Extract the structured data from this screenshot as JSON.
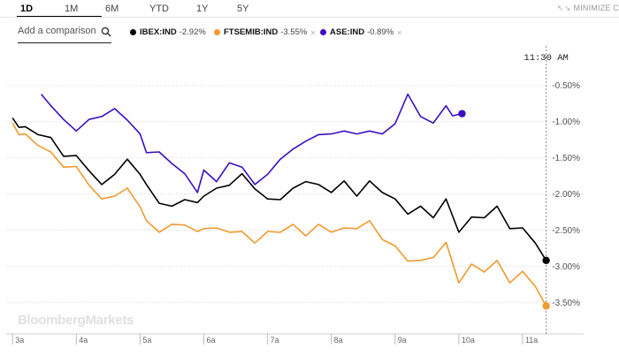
{
  "range_tabs": [
    {
      "label": "1D",
      "active": true
    },
    {
      "label": "1M",
      "active": false
    },
    {
      "label": "6M",
      "active": false
    },
    {
      "label": "YTD",
      "active": false
    },
    {
      "label": "1Y",
      "active": false
    },
    {
      "label": "5Y",
      "active": false
    }
  ],
  "minimize_label": "MINIMIZE C",
  "compare": {
    "placeholder": "Add a comparison"
  },
  "legend": [
    {
      "name": "IBEX:IND",
      "change": "-2.92%",
      "color": "#000000"
    },
    {
      "name": "FTSEMIB:IND",
      "change": "-3.55%",
      "color": "#f09a2f"
    },
    {
      "name": "ASE:IND",
      "change": "-0.89%",
      "color": "#3a0fc2"
    }
  ],
  "watermark": "BloombergMarkets",
  "chart_data": {
    "type": "line",
    "current_time_label": "11:30 AM",
    "x_ticks": [
      "3a",
      "4a",
      "5a",
      "6a",
      "7a",
      "8a",
      "9a",
      "10a",
      "11a"
    ],
    "y_ticks": [
      "-0.50%",
      "-1.00%",
      "-1.50%",
      "-2.00%",
      "-2.50%",
      "-3.00%",
      "-3.50%"
    ],
    "y_tick_values": [
      -0.5,
      -1.0,
      -1.5,
      -2.0,
      -2.5,
      -3.0,
      -3.5
    ],
    "ylim": [
      -3.9,
      -0.1
    ],
    "xlim": [
      2.9,
      11.5
    ],
    "grid": "horizontal-dotted",
    "series": [
      {
        "name": "IBEX:IND",
        "color": "#000000",
        "x": [
          3.0,
          3.1,
          3.2,
          3.4,
          3.6,
          3.8,
          4.0,
          4.2,
          4.4,
          4.6,
          4.8,
          5.0,
          5.1,
          5.3,
          5.5,
          5.7,
          5.9,
          6.0,
          6.2,
          6.4,
          6.6,
          6.8,
          7.0,
          7.2,
          7.4,
          7.6,
          7.8,
          8.0,
          8.2,
          8.4,
          8.6,
          8.8,
          9.0,
          9.2,
          9.4,
          9.6,
          9.8,
          10.0,
          10.2,
          10.4,
          10.6,
          10.8,
          11.0,
          11.2,
          11.37
        ],
        "y": [
          -0.98,
          -1.05,
          -1.1,
          -1.15,
          -1.25,
          -1.45,
          -1.5,
          -1.65,
          -1.9,
          -1.7,
          -1.55,
          -1.7,
          -1.9,
          -2.1,
          -2.2,
          -2.05,
          -2.15,
          -2.0,
          -1.95,
          -1.85,
          -1.75,
          -1.9,
          -2.1,
          -2.05,
          -1.95,
          -1.8,
          -1.9,
          -1.95,
          -1.85,
          -2.0,
          -1.85,
          -1.95,
          -2.1,
          -2.25,
          -2.2,
          -2.3,
          -2.1,
          -2.5,
          -2.35,
          -2.3,
          -2.2,
          -2.45,
          -2.5,
          -2.65,
          -2.92
        ]
      },
      {
        "name": "FTSEMIB:IND",
        "color": "#f09a2f",
        "x": [
          3.0,
          3.1,
          3.2,
          3.4,
          3.6,
          3.8,
          4.0,
          4.2,
          4.4,
          4.6,
          4.8,
          5.0,
          5.1,
          5.3,
          5.5,
          5.7,
          5.9,
          6.0,
          6.2,
          6.4,
          6.6,
          6.8,
          7.0,
          7.2,
          7.4,
          7.6,
          7.8,
          8.0,
          8.2,
          8.4,
          8.6,
          8.8,
          9.0,
          9.2,
          9.4,
          9.6,
          9.8,
          10.0,
          10.2,
          10.4,
          10.6,
          10.8,
          11.0,
          11.2,
          11.37
        ],
        "y": [
          -1.05,
          -1.15,
          -1.2,
          -1.3,
          -1.45,
          -1.6,
          -1.65,
          -1.85,
          -2.1,
          -2.0,
          -1.95,
          -2.15,
          -2.4,
          -2.5,
          -2.45,
          -2.4,
          -2.55,
          -2.45,
          -2.5,
          -2.5,
          -2.55,
          -2.65,
          -2.55,
          -2.5,
          -2.45,
          -2.55,
          -2.45,
          -2.5,
          -2.5,
          -2.45,
          -2.4,
          -2.6,
          -2.75,
          -2.9,
          -2.95,
          -2.85,
          -2.7,
          -3.2,
          -3.0,
          -3.05,
          -2.95,
          -3.2,
          -3.1,
          -3.25,
          -3.55
        ]
      },
      {
        "name": "ASE:IND",
        "color": "#3a0fc2",
        "x": [
          3.45,
          3.6,
          3.8,
          4.0,
          4.2,
          4.4,
          4.6,
          4.8,
          5.0,
          5.1,
          5.3,
          5.5,
          5.7,
          5.9,
          6.0,
          6.2,
          6.4,
          6.6,
          6.8,
          7.0,
          7.2,
          7.4,
          7.6,
          7.8,
          8.0,
          8.2,
          8.4,
          8.6,
          8.8,
          9.0,
          9.2,
          9.4,
          9.6,
          9.8,
          9.9,
          10.05
        ],
        "y": [
          -0.65,
          -0.75,
          -1.0,
          -1.1,
          -1.0,
          -0.9,
          -0.85,
          -0.95,
          -1.2,
          -1.4,
          -1.45,
          -1.55,
          -1.75,
          -1.95,
          -1.7,
          -1.8,
          -1.6,
          -1.6,
          -1.9,
          -1.7,
          -1.55,
          -1.35,
          -1.3,
          -1.15,
          -1.2,
          -1.1,
          -1.2,
          -1.1,
          -1.2,
          -1.0,
          -0.65,
          -0.9,
          -1.05,
          -0.75,
          -0.95,
          -0.89
        ]
      }
    ]
  }
}
